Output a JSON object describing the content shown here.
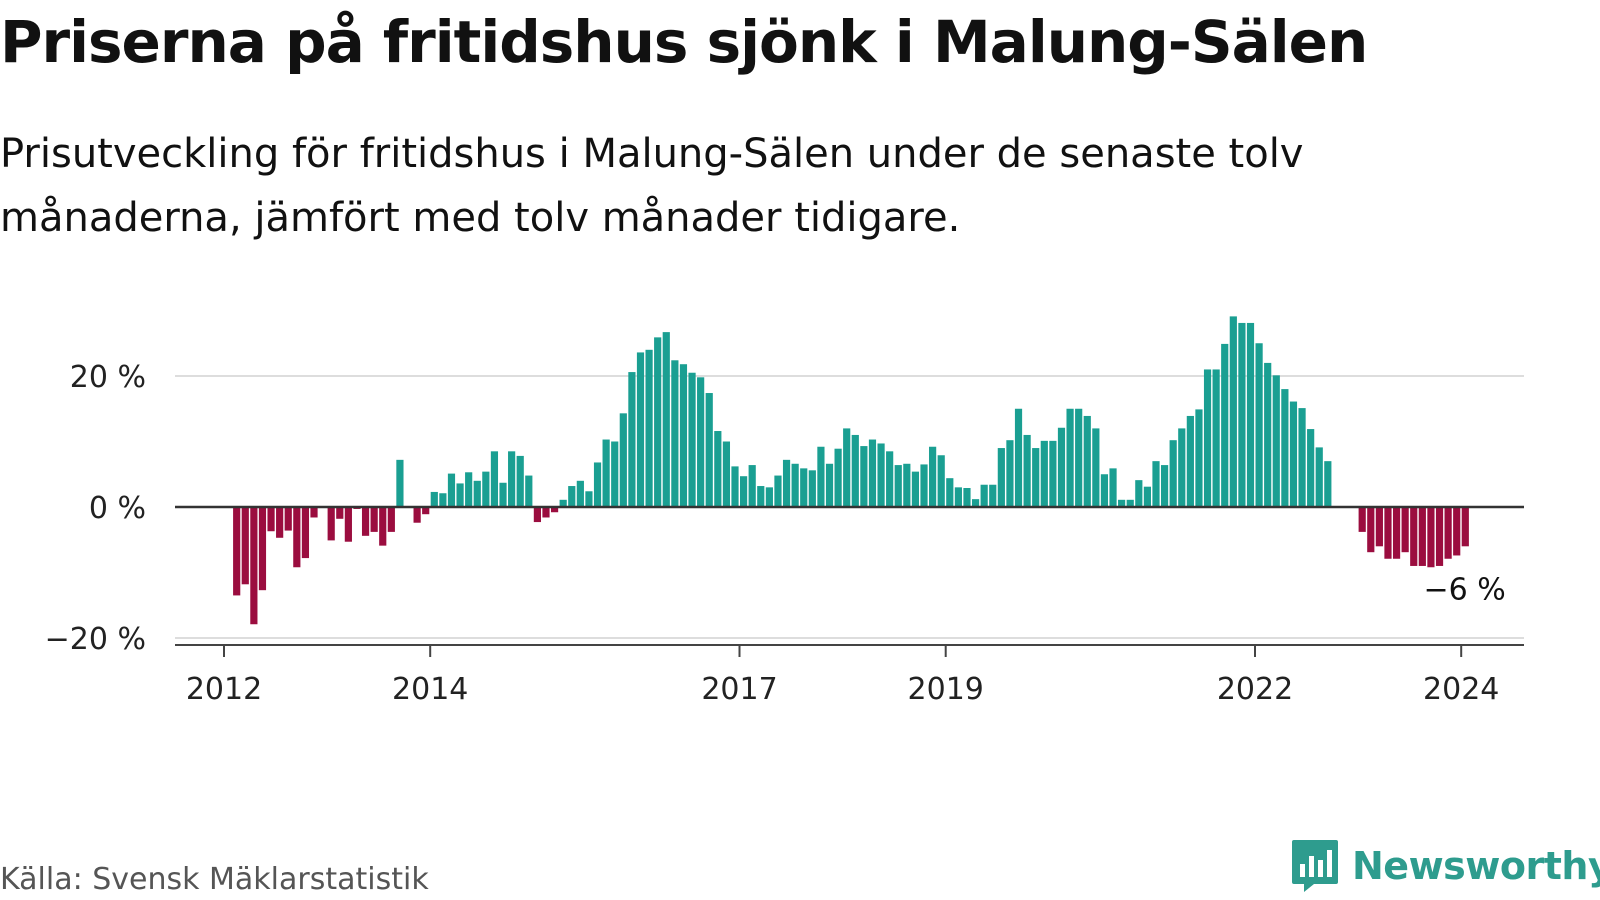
{
  "chart_data": {
    "type": "bar",
    "title": "Priserna på fritidshus sjönk i Malung-Sälen",
    "subtitle": "Prisutveckling för fritidshus i Malung-Sälen under de senaste tolv månaderna, jämfört med tolv månader tidigare.",
    "ylim": [
      -21,
      30
    ],
    "yticks": [
      {
        "value": 20,
        "label": "20 %"
      },
      {
        "value": 0,
        "label": "0 %"
      },
      {
        "value": -20,
        "label": "−20 %"
      }
    ],
    "xticks": [
      {
        "year": 2012,
        "label": "2012"
      },
      {
        "year": 2014,
        "label": "2014"
      },
      {
        "year": 2017,
        "label": "2017"
      },
      {
        "year": 2019,
        "label": "2019"
      },
      {
        "year": 2022,
        "label": "2022"
      },
      {
        "year": 2024,
        "label": "2024"
      }
    ],
    "first_bar_year": 2012.125,
    "months_per_year": 12,
    "values": [
      -13.5,
      -11.8,
      -17.9,
      -12.7,
      -3.7,
      -4.7,
      -3.6,
      -9.2,
      -7.8,
      -1.6,
      0,
      -5.1,
      -1.8,
      -5.3,
      -0.3,
      -4.4,
      -3.8,
      -5.9,
      -3.8,
      7.2,
      0,
      -2.4,
      -1.1,
      2.3,
      2.1,
      5.1,
      3.6,
      5.3,
      4.0,
      5.4,
      8.5,
      3.7,
      8.5,
      7.8,
      4.8,
      -2.3,
      -1.6,
      -0.8,
      1.1,
      3.2,
      4.0,
      2.4,
      6.8,
      10.3,
      10.0,
      14.3,
      20.6,
      23.6,
      24.0,
      25.9,
      26.7,
      22.4,
      21.8,
      20.5,
      19.8,
      17.4,
      11.6,
      10.0,
      6.2,
      4.7,
      6.4,
      3.2,
      3.0,
      4.8,
      7.2,
      6.6,
      5.9,
      5.6,
      9.2,
      6.6,
      8.9,
      12.0,
      11.0,
      9.3,
      10.3,
      9.7,
      8.5,
      6.4,
      6.6,
      5.4,
      6.5,
      9.2,
      7.9,
      4.4,
      3.0,
      2.9,
      1.2,
      3.4,
      3.4,
      9.0,
      10.2,
      15.0,
      11.0,
      9.0,
      10.1,
      10.1,
      12.1,
      15.0,
      15.0,
      13.9,
      12.0,
      5.0,
      5.9,
      1.1,
      1.1,
      4.1,
      3.1,
      7.0,
      6.4,
      10.2,
      12.0,
      13.9,
      14.9,
      21.0,
      21.0,
      24.9,
      29.1,
      28.1,
      28.1,
      25.0,
      22.0,
      20.1,
      18.0,
      16.1,
      15.1,
      11.9,
      9.1,
      7.0,
      0,
      0,
      0,
      -3.8,
      -6.9,
      -6.0,
      -7.9,
      -7.9,
      -6.9,
      -9.0,
      -9.0,
      -9.2,
      -9.0,
      -7.9,
      -7.4,
      -6.0
    ],
    "last_value_label": "−6 %",
    "colors": {
      "positive": "#1a9f92",
      "negative": "#9b0d3f",
      "zero_line": "#333333",
      "grid": "#dddddd",
      "axis": "#444444",
      "tick_text": "#222222"
    }
  },
  "source": "Källa: Svensk Mäklarstatistik",
  "brand": {
    "name": "Newsworthy",
    "icon": "bar-chart-icon",
    "color": "#2e9c8e"
  }
}
